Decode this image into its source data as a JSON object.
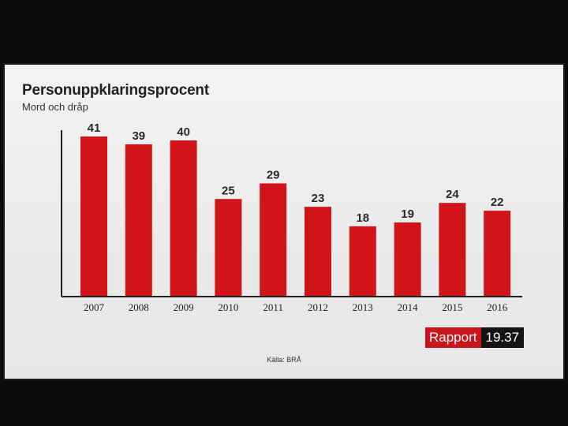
{
  "chart_data": {
    "type": "bar",
    "title": "Personuppklaringsprocent",
    "subtitle": "Mord och dråp",
    "categories": [
      "2007",
      "2008",
      "2009",
      "2010",
      "2011",
      "2012",
      "2013",
      "2014",
      "2015",
      "2016"
    ],
    "values": [
      41,
      39,
      40,
      25,
      29,
      23,
      18,
      19,
      24,
      22
    ],
    "ylim": [
      0,
      45
    ],
    "grid": false,
    "bar_color": "#d0141a"
  },
  "program": {
    "name": "Rapport",
    "time": "19.37"
  },
  "source": "Källa: BRÅ",
  "colors": {
    "bar": "#d0141a",
    "badge_red": "#c8141a",
    "badge_dark": "#141414"
  }
}
